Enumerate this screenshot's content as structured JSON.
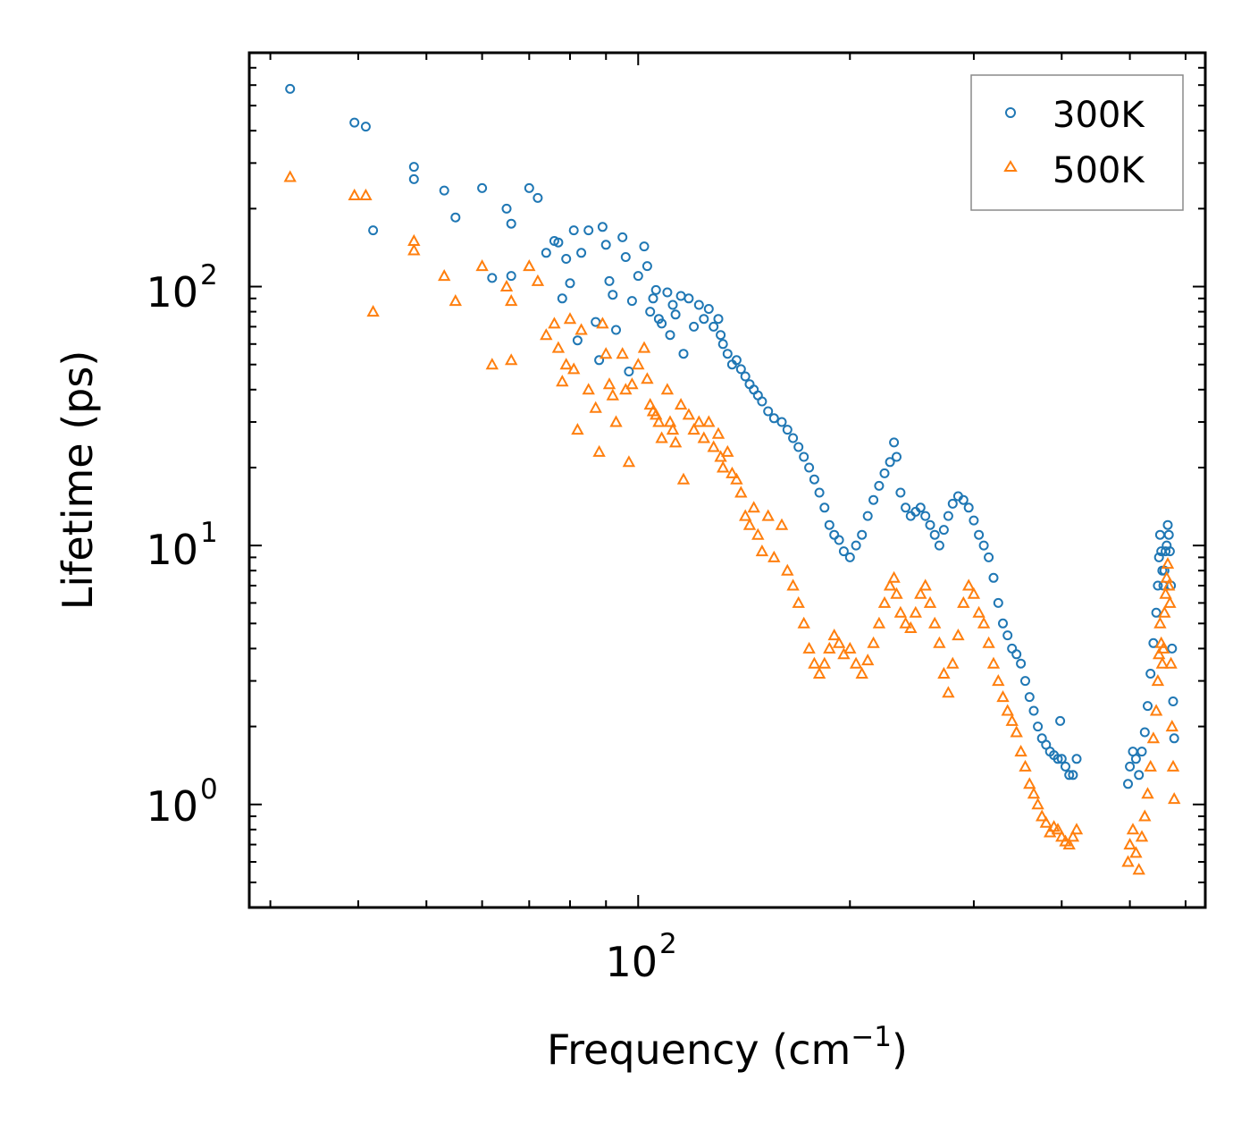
{
  "chart_data": {
    "type": "scatter",
    "title": "",
    "xlabel": "Frequency (cm",
    "xlabel_sup": "−1",
    "xlabel_close": ")",
    "ylabel": "Lifetime (ps)",
    "xscale": "log",
    "yscale": "log",
    "xlim": [
      28,
      640
    ],
    "ylim": [
      0.4,
      800
    ],
    "x_ticks": [
      {
        "base": "10",
        "exp": "2",
        "value": 100
      }
    ],
    "y_ticks": [
      {
        "base": "10",
        "exp": "0",
        "value": 1
      },
      {
        "base": "10",
        "exp": "1",
        "value": 10
      },
      {
        "base": "10",
        "exp": "2",
        "value": 100
      }
    ],
    "legend_position": "top-right",
    "series": [
      {
        "name": "300K",
        "marker": "circle",
        "color": "#1f77b4",
        "points": [
          [
            32,
            580
          ],
          [
            39.5,
            430
          ],
          [
            41,
            415
          ],
          [
            42,
            165
          ],
          [
            48,
            290
          ],
          [
            48,
            260
          ],
          [
            53,
            235
          ],
          [
            55,
            185
          ],
          [
            60,
            240
          ],
          [
            62,
            108
          ],
          [
            65,
            200
          ],
          [
            66,
            175
          ],
          [
            66,
            110
          ],
          [
            70,
            240
          ],
          [
            72,
            220
          ],
          [
            74,
            135
          ],
          [
            76,
            150
          ],
          [
            77,
            148
          ],
          [
            78,
            90
          ],
          [
            79,
            128
          ],
          [
            80,
            103
          ],
          [
            81,
            165
          ],
          [
            82,
            62
          ],
          [
            83,
            135
          ],
          [
            85,
            165
          ],
          [
            87,
            73
          ],
          [
            88,
            52
          ],
          [
            89,
            170
          ],
          [
            90,
            145
          ],
          [
            91,
            105
          ],
          [
            92,
            93
          ],
          [
            93,
            68
          ],
          [
            95,
            155
          ],
          [
            96,
            130
          ],
          [
            97,
            47
          ],
          [
            98,
            88
          ],
          [
            100,
            110
          ],
          [
            102,
            143
          ],
          [
            103,
            120
          ],
          [
            104,
            80
          ],
          [
            105,
            90
          ],
          [
            106,
            97
          ],
          [
            107,
            75
          ],
          [
            108,
            72
          ],
          [
            110,
            95
          ],
          [
            111,
            65
          ],
          [
            112,
            85
          ],
          [
            113,
            78
          ],
          [
            115,
            92
          ],
          [
            116,
            55
          ],
          [
            118,
            90
          ],
          [
            120,
            70
          ],
          [
            122,
            85
          ],
          [
            124,
            75
          ],
          [
            126,
            82
          ],
          [
            128,
            70
          ],
          [
            130,
            75
          ],
          [
            131,
            65
          ],
          [
            132,
            60
          ],
          [
            134,
            55
          ],
          [
            136,
            50
          ],
          [
            138,
            52
          ],
          [
            140,
            48
          ],
          [
            142,
            45
          ],
          [
            144,
            42
          ],
          [
            146,
            40
          ],
          [
            148,
            38
          ],
          [
            150,
            36
          ],
          [
            153,
            33
          ],
          [
            156,
            31
          ],
          [
            160,
            30
          ],
          [
            163,
            28
          ],
          [
            166,
            26
          ],
          [
            169,
            24
          ],
          [
            172,
            22
          ],
          [
            175,
            20
          ],
          [
            178,
            18
          ],
          [
            181,
            16
          ],
          [
            184,
            14
          ],
          [
            187,
            12
          ],
          [
            190,
            11
          ],
          [
            193,
            10.5
          ],
          [
            196,
            9.5
          ],
          [
            200,
            9
          ],
          [
            204,
            10
          ],
          [
            208,
            11
          ],
          [
            212,
            13
          ],
          [
            216,
            15
          ],
          [
            220,
            17
          ],
          [
            224,
            19
          ],
          [
            228,
            21
          ],
          [
            231,
            25
          ],
          [
            233,
            22
          ],
          [
            236,
            16
          ],
          [
            240,
            14
          ],
          [
            244,
            13
          ],
          [
            248,
            13.5
          ],
          [
            252,
            14
          ],
          [
            256,
            13
          ],
          [
            260,
            12
          ],
          [
            264,
            11
          ],
          [
            268,
            10
          ],
          [
            272,
            11.5
          ],
          [
            276,
            13
          ],
          [
            280,
            14.5
          ],
          [
            285,
            15.5
          ],
          [
            290,
            15
          ],
          [
            295,
            14
          ],
          [
            300,
            12.5
          ],
          [
            305,
            11
          ],
          [
            310,
            10
          ],
          [
            315,
            9
          ],
          [
            320,
            7.5
          ],
          [
            325,
            6
          ],
          [
            330,
            5
          ],
          [
            335,
            4.5
          ],
          [
            340,
            4
          ],
          [
            345,
            3.8
          ],
          [
            350,
            3.5
          ],
          [
            355,
            3
          ],
          [
            360,
            2.6
          ],
          [
            365,
            2.3
          ],
          [
            370,
            2
          ],
          [
            375,
            1.8
          ],
          [
            380,
            1.7
          ],
          [
            385,
            1.6
          ],
          [
            390,
            1.55
          ],
          [
            395,
            1.5
          ],
          [
            398,
            2.1
          ],
          [
            400,
            1.5
          ],
          [
            405,
            1.4
          ],
          [
            410,
            1.3
          ],
          [
            415,
            1.3
          ],
          [
            420,
            1.5
          ],
          [
            497,
            1.2
          ],
          [
            500,
            1.4
          ],
          [
            505,
            1.6
          ],
          [
            510,
            1.5
          ],
          [
            515,
            1.3
          ],
          [
            520,
            1.6
          ],
          [
            525,
            1.9
          ],
          [
            530,
            2.4
          ],
          [
            535,
            3.2
          ],
          [
            540,
            4.2
          ],
          [
            545,
            5.5
          ],
          [
            548,
            7
          ],
          [
            550,
            9
          ],
          [
            552,
            11
          ],
          [
            554,
            9.5
          ],
          [
            556,
            8
          ],
          [
            558,
            7
          ],
          [
            560,
            8
          ],
          [
            562,
            9.5
          ],
          [
            564,
            10
          ],
          [
            566,
            12
          ],
          [
            568,
            11
          ],
          [
            570,
            9.5
          ],
          [
            572,
            7
          ],
          [
            574,
            4
          ],
          [
            576,
            2.5
          ],
          [
            578,
            1.8
          ]
        ]
      },
      {
        "name": "500K",
        "marker": "triangle",
        "color": "#ff7f0e",
        "points": [
          [
            32,
            265
          ],
          [
            39.5,
            225
          ],
          [
            41,
            225
          ],
          [
            42,
            80
          ],
          [
            48,
            150
          ],
          [
            48,
            138
          ],
          [
            53,
            110
          ],
          [
            55,
            88
          ],
          [
            60,
            120
          ],
          [
            62,
            50
          ],
          [
            65,
            100
          ],
          [
            66,
            88
          ],
          [
            66,
            52
          ],
          [
            70,
            120
          ],
          [
            72,
            105
          ],
          [
            74,
            65
          ],
          [
            76,
            72
          ],
          [
            77,
            58
          ],
          [
            78,
            43
          ],
          [
            79,
            50
          ],
          [
            80,
            75
          ],
          [
            81,
            48
          ],
          [
            82,
            28
          ],
          [
            83,
            68
          ],
          [
            85,
            40
          ],
          [
            87,
            34
          ],
          [
            88,
            23
          ],
          [
            89,
            72
          ],
          [
            90,
            55
          ],
          [
            91,
            42
          ],
          [
            92,
            38
          ],
          [
            93,
            30
          ],
          [
            95,
            55
          ],
          [
            96,
            40
          ],
          [
            97,
            21
          ],
          [
            98,
            42
          ],
          [
            100,
            50
          ],
          [
            102,
            58
          ],
          [
            103,
            44
          ],
          [
            104,
            35
          ],
          [
            105,
            33
          ],
          [
            106,
            32
          ],
          [
            107,
            30
          ],
          [
            108,
            26
          ],
          [
            110,
            40
          ],
          [
            111,
            30
          ],
          [
            112,
            28
          ],
          [
            113,
            25
          ],
          [
            115,
            35
          ],
          [
            116,
            18
          ],
          [
            118,
            32
          ],
          [
            120,
            28
          ],
          [
            122,
            30
          ],
          [
            124,
            26
          ],
          [
            126,
            30
          ],
          [
            128,
            24
          ],
          [
            130,
            27
          ],
          [
            131,
            22
          ],
          [
            132,
            20
          ],
          [
            134,
            23
          ],
          [
            136,
            19
          ],
          [
            138,
            18
          ],
          [
            140,
            16
          ],
          [
            142,
            13
          ],
          [
            144,
            12
          ],
          [
            146,
            14
          ],
          [
            148,
            11
          ],
          [
            150,
            9.5
          ],
          [
            153,
            13
          ],
          [
            156,
            9
          ],
          [
            160,
            12
          ],
          [
            163,
            8
          ],
          [
            166,
            7
          ],
          [
            169,
            6
          ],
          [
            172,
            5
          ],
          [
            175,
            4
          ],
          [
            178,
            3.5
          ],
          [
            181,
            3.2
          ],
          [
            184,
            3.5
          ],
          [
            187,
            4
          ],
          [
            190,
            4.5
          ],
          [
            193,
            4.2
          ],
          [
            196,
            3.8
          ],
          [
            200,
            4
          ],
          [
            204,
            3.5
          ],
          [
            208,
            3.2
          ],
          [
            212,
            3.6
          ],
          [
            216,
            4.2
          ],
          [
            220,
            5
          ],
          [
            224,
            6
          ],
          [
            228,
            7
          ],
          [
            231,
            7.5
          ],
          [
            233,
            6.5
          ],
          [
            236,
            5.5
          ],
          [
            240,
            5
          ],
          [
            244,
            4.8
          ],
          [
            248,
            5.5
          ],
          [
            252,
            6.5
          ],
          [
            256,
            7
          ],
          [
            260,
            6
          ],
          [
            264,
            5
          ],
          [
            268,
            4.2
          ],
          [
            272,
            3.2
          ],
          [
            276,
            2.7
          ],
          [
            280,
            3.5
          ],
          [
            285,
            4.5
          ],
          [
            290,
            6
          ],
          [
            295,
            7
          ],
          [
            300,
            6.5
          ],
          [
            305,
            5.5
          ],
          [
            310,
            5
          ],
          [
            315,
            4.2
          ],
          [
            320,
            3.5
          ],
          [
            325,
            3
          ],
          [
            330,
            2.6
          ],
          [
            335,
            2.3
          ],
          [
            340,
            2.1
          ],
          [
            345,
            1.9
          ],
          [
            350,
            1.6
          ],
          [
            355,
            1.4
          ],
          [
            360,
            1.2
          ],
          [
            365,
            1.1
          ],
          [
            370,
            1.0
          ],
          [
            375,
            0.9
          ],
          [
            380,
            0.85
          ],
          [
            385,
            0.78
          ],
          [
            390,
            0.82
          ],
          [
            395,
            0.8
          ],
          [
            400,
            0.75
          ],
          [
            405,
            0.72
          ],
          [
            410,
            0.7
          ],
          [
            415,
            0.75
          ],
          [
            420,
            0.8
          ],
          [
            497,
            0.6
          ],
          [
            500,
            0.7
          ],
          [
            505,
            0.8
          ],
          [
            510,
            0.65
          ],
          [
            515,
            0.56
          ],
          [
            520,
            0.75
          ],
          [
            525,
            0.9
          ],
          [
            530,
            1.1
          ],
          [
            535,
            1.4
          ],
          [
            540,
            1.8
          ],
          [
            545,
            2.3
          ],
          [
            548,
            3
          ],
          [
            550,
            3.8
          ],
          [
            552,
            5
          ],
          [
            554,
            4.2
          ],
          [
            556,
            3.5
          ],
          [
            558,
            4
          ],
          [
            560,
            5.5
          ],
          [
            562,
            6.5
          ],
          [
            564,
            7.5
          ],
          [
            566,
            8.5
          ],
          [
            568,
            7
          ],
          [
            570,
            6
          ],
          [
            572,
            3.5
          ],
          [
            574,
            2
          ],
          [
            576,
            1.4
          ],
          [
            578,
            1.05
          ]
        ]
      }
    ]
  }
}
